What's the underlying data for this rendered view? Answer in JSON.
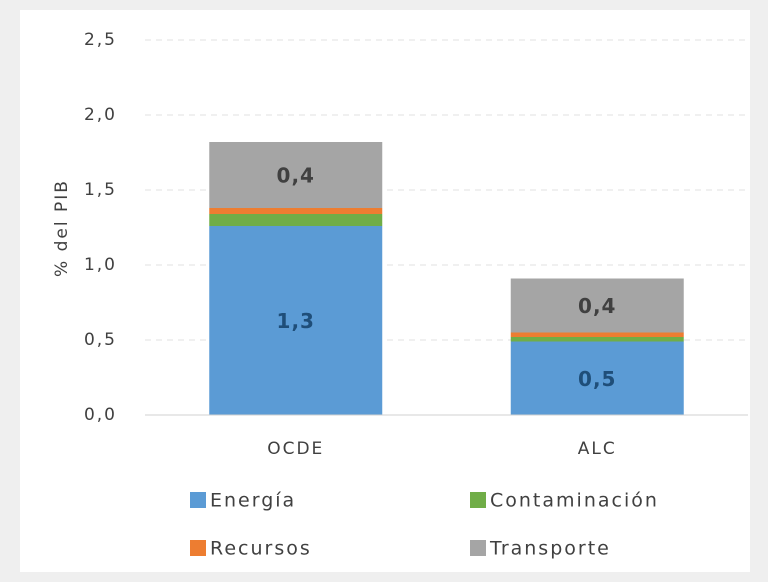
{
  "chart_data": {
    "type": "stacked_bar",
    "y_axis_label": "% del PIB",
    "categories": [
      "OCDE",
      "ALC"
    ],
    "series": [
      {
        "name": "Energía",
        "color": "#5b9bd5",
        "values": [
          1.26,
          0.49
        ],
        "value_labels": [
          "1,3",
          "0,5"
        ],
        "label_color": "#1f4e79"
      },
      {
        "name": "Contaminación",
        "color": "#70ad47",
        "values": [
          0.08,
          0.03
        ]
      },
      {
        "name": "Recursos",
        "color": "#ed7d31",
        "values": [
          0.04,
          0.03
        ]
      },
      {
        "name": "Transporte",
        "color": "#a5a5a5",
        "values": [
          0.44,
          0.36
        ],
        "value_labels": [
          "0,4",
          "0,4"
        ],
        "label_color": "#404040"
      }
    ],
    "ylim": [
      0,
      2.5
    ],
    "yticks": [
      {
        "value": 0,
        "label": "0,0"
      },
      {
        "value": 0.5,
        "label": "0,5"
      },
      {
        "value": 1,
        "label": "1,0"
      },
      {
        "value": 1.5,
        "label": "1,5"
      },
      {
        "value": 2,
        "label": "2,0"
      },
      {
        "value": 2.5,
        "label": "2,5"
      }
    ],
    "grid": true
  }
}
